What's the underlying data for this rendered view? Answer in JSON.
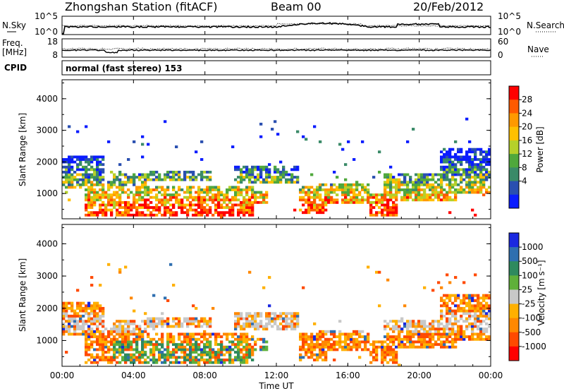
{
  "header": {
    "station": "Zhongshan Station (fitACF)",
    "beam": "Beam 00",
    "date": "20/Feb/2012"
  },
  "top_panels": {
    "nsky": {
      "left_label": "N.Sky",
      "right_label": "N.Search",
      "left_ticks": [
        "10^5",
        "10^0"
      ],
      "right_ticks": [
        "10^5",
        "10^0"
      ]
    },
    "freq": {
      "left_label_line1": "Freq.",
      "left_label_line2": "[MHz]",
      "right_label": "Nave",
      "left_ticks": [
        "18",
        "8"
      ],
      "right_ticks": [
        "60",
        "0"
      ]
    },
    "cpid": {
      "label": "CPID",
      "text": "normal (fast stereo) 153"
    }
  },
  "chart_data": [
    {
      "type": "heatmap",
      "name": "power-panel",
      "ylabel": "Slant Range [km]",
      "ylim": [
        200,
        4600
      ],
      "yticks": [
        "4000",
        "3000",
        "2000",
        "1000"
      ],
      "colorbar": {
        "label": "Power [dB]",
        "ticks": [
          "28",
          "24",
          "20",
          "16",
          "12",
          "8",
          "4"
        ],
        "colors": [
          "#ff0000",
          "#ff5a00",
          "#ff9900",
          "#ffc000",
          "#b5d02a",
          "#4fa83c",
          "#3a8a68",
          "#2a4fb0",
          "#0a1cff"
        ]
      }
    },
    {
      "type": "heatmap",
      "name": "velocity-panel",
      "ylabel": "Slant Range [km]",
      "ylim": [
        200,
        4600
      ],
      "yticks": [
        "4000",
        "3000",
        "2000",
        "1000"
      ],
      "colorbar": {
        "label": "Velocity [m s⁻¹]",
        "ticks": [
          "1000",
          "500",
          "100",
          "25",
          "-25",
          "-100",
          "-500",
          "-1000"
        ],
        "colors": [
          "#1a28e0",
          "#2f6fb0",
          "#2e8a5e",
          "#5fb03a",
          "#c8c8c8",
          "#ffb000",
          "#ff8800",
          "#ff4a00",
          "#ff0000"
        ]
      }
    }
  ],
  "xaxis": {
    "label": "Time UT",
    "ticks": [
      "00:00",
      "04:00",
      "08:00",
      "12:00",
      "16:00",
      "20:00",
      "00:00"
    ]
  }
}
